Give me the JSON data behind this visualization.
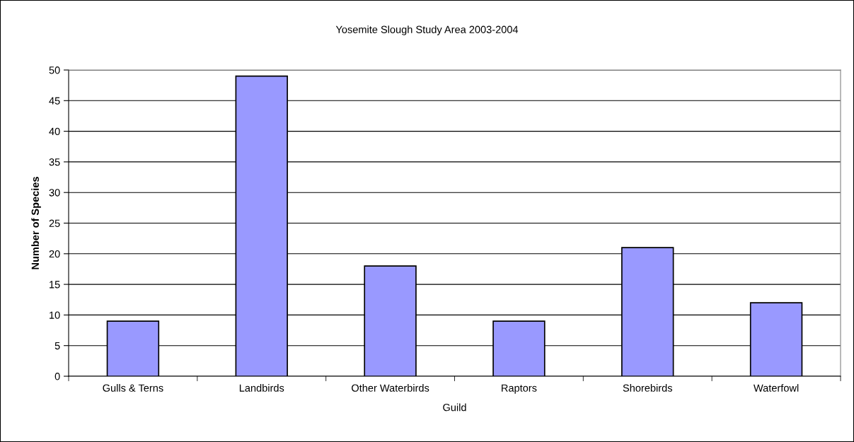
{
  "chart_data": {
    "type": "bar",
    "title": "Yosemite Slough Study Area 2003-2004",
    "xlabel": "Guild",
    "ylabel": "Number of Species",
    "categories": [
      "Gulls & Terns",
      "Landbirds",
      "Other Waterbirds",
      "Raptors",
      "Shorebirds",
      "Waterfowl"
    ],
    "values": [
      9,
      49,
      18,
      9,
      21,
      12
    ],
    "color": "#9999ff",
    "ylim": [
      0,
      50
    ],
    "yticks": [
      0,
      5,
      10,
      15,
      20,
      25,
      30,
      35,
      40,
      45,
      50
    ],
    "grid": "y",
    "legend": false
  }
}
